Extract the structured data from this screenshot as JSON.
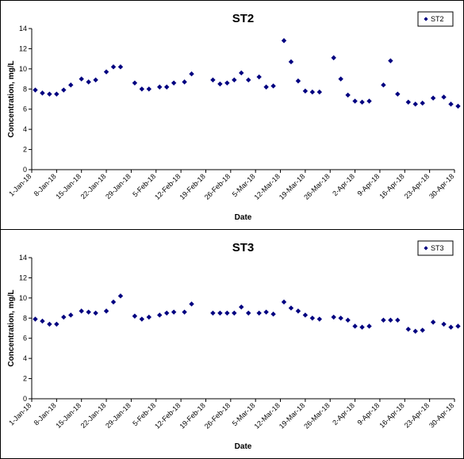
{
  "chart_data": [
    {
      "type": "scatter",
      "title": "ST2",
      "xlabel": "Date",
      "ylabel": "Concentration, mg/L",
      "ylim": [
        0,
        14
      ],
      "y_ticks": [
        0,
        2,
        4,
        6,
        8,
        10,
        12,
        14
      ],
      "xlim": [
        "2018-01-01",
        "2018-04-30"
      ],
      "x_ticks": [
        "1-Jan-18",
        "8-Jan-18",
        "15-Jan-18",
        "22-Jan-18",
        "29-Jan-18",
        "5-Feb-18",
        "12-Feb-18",
        "19-Feb-18",
        "26-Feb-18",
        "5-Mar-18",
        "12-Mar-18",
        "19-Mar-18",
        "26-Mar-18",
        "2-Apr-18",
        "9-Apr-18",
        "16-Apr-18",
        "23-Apr-18",
        "30-Apr-18"
      ],
      "grid": false,
      "legend_position": "top-right",
      "marker": "diamond",
      "color": "#000080",
      "series": [
        {
          "name": "ST2",
          "x": [
            "2018-01-02",
            "2018-01-04",
            "2018-01-06",
            "2018-01-08",
            "2018-01-10",
            "2018-01-12",
            "2018-01-15",
            "2018-01-17",
            "2018-01-19",
            "2018-01-22",
            "2018-01-24",
            "2018-01-26",
            "2018-01-30",
            "2018-02-01",
            "2018-02-03",
            "2018-02-06",
            "2018-02-08",
            "2018-02-10",
            "2018-02-13",
            "2018-02-15",
            "2018-02-21",
            "2018-02-23",
            "2018-02-25",
            "2018-02-27",
            "2018-03-01",
            "2018-03-03",
            "2018-03-06",
            "2018-03-08",
            "2018-03-10",
            "2018-03-13",
            "2018-03-15",
            "2018-03-17",
            "2018-03-19",
            "2018-03-21",
            "2018-03-23",
            "2018-03-27",
            "2018-03-29",
            "2018-03-31",
            "2018-04-02",
            "2018-04-04",
            "2018-04-06",
            "2018-04-10",
            "2018-04-12",
            "2018-04-14",
            "2018-04-17",
            "2018-04-19",
            "2018-04-21",
            "2018-04-24",
            "2018-04-27",
            "2018-04-29",
            "2018-05-01"
          ],
          "y": [
            7.9,
            7.6,
            7.5,
            7.5,
            7.9,
            8.4,
            9.0,
            8.7,
            8.9,
            9.7,
            10.2,
            10.2,
            8.6,
            8.0,
            8.0,
            8.2,
            8.2,
            8.6,
            8.7,
            9.5,
            8.9,
            8.5,
            8.6,
            8.9,
            9.6,
            8.9,
            9.2,
            8.2,
            8.3,
            12.8,
            10.7,
            8.8,
            7.8,
            7.7,
            7.7,
            11.1,
            9.0,
            7.4,
            6.8,
            6.7,
            6.8,
            8.4,
            10.8,
            7.5,
            6.7,
            6.5,
            6.6,
            7.1,
            7.2,
            6.5,
            6.3
          ]
        }
      ]
    },
    {
      "type": "scatter",
      "title": "ST3",
      "xlabel": "Date",
      "ylabel": "Concentration, mg/L",
      "ylim": [
        0,
        14
      ],
      "y_ticks": [
        0,
        2,
        4,
        6,
        8,
        10,
        12,
        14
      ],
      "xlim": [
        "2018-01-01",
        "2018-04-30"
      ],
      "x_ticks": [
        "1-Jan-18",
        "8-Jan-18",
        "15-Jan-18",
        "22-Jan-18",
        "29-Jan-18",
        "5-Feb-18",
        "12-Feb-18",
        "19-Feb-18",
        "26-Feb-18",
        "5-Mar-18",
        "12-Mar-18",
        "19-Mar-18",
        "26-Mar-18",
        "2-Apr-18",
        "9-Apr-18",
        "16-Apr-18",
        "23-Apr-18",
        "30-Apr-18"
      ],
      "grid": false,
      "legend_position": "top-right",
      "marker": "diamond",
      "color": "#000080",
      "series": [
        {
          "name": "ST3",
          "x": [
            "2018-01-02",
            "2018-01-04",
            "2018-01-06",
            "2018-01-08",
            "2018-01-10",
            "2018-01-12",
            "2018-01-15",
            "2018-01-17",
            "2018-01-19",
            "2018-01-22",
            "2018-01-24",
            "2018-01-26",
            "2018-01-30",
            "2018-02-01",
            "2018-02-03",
            "2018-02-06",
            "2018-02-08",
            "2018-02-10",
            "2018-02-13",
            "2018-02-15",
            "2018-02-21",
            "2018-02-23",
            "2018-02-25",
            "2018-02-27",
            "2018-03-01",
            "2018-03-03",
            "2018-03-06",
            "2018-03-08",
            "2018-03-10",
            "2018-03-13",
            "2018-03-15",
            "2018-03-17",
            "2018-03-19",
            "2018-03-21",
            "2018-03-23",
            "2018-03-27",
            "2018-03-29",
            "2018-03-31",
            "2018-04-02",
            "2018-04-04",
            "2018-04-06",
            "2018-04-10",
            "2018-04-12",
            "2018-04-14",
            "2018-04-17",
            "2018-04-19",
            "2018-04-21",
            "2018-04-24",
            "2018-04-27",
            "2018-04-29",
            "2018-05-01"
          ],
          "y": [
            7.9,
            7.7,
            7.4,
            7.4,
            8.1,
            8.3,
            8.7,
            8.6,
            8.5,
            8.7,
            9.6,
            10.2,
            8.2,
            7.9,
            8.1,
            8.3,
            8.5,
            8.6,
            8.6,
            9.4,
            8.5,
            8.5,
            8.5,
            8.5,
            9.1,
            8.5,
            8.5,
            8.6,
            8.4,
            9.6,
            9.0,
            8.7,
            8.3,
            8.0,
            7.9,
            8.1,
            8.0,
            7.8,
            7.2,
            7.1,
            7.2,
            7.8,
            7.8,
            7.8,
            6.9,
            6.7,
            6.8,
            7.6,
            7.4,
            7.1,
            7.2
          ]
        }
      ]
    }
  ]
}
